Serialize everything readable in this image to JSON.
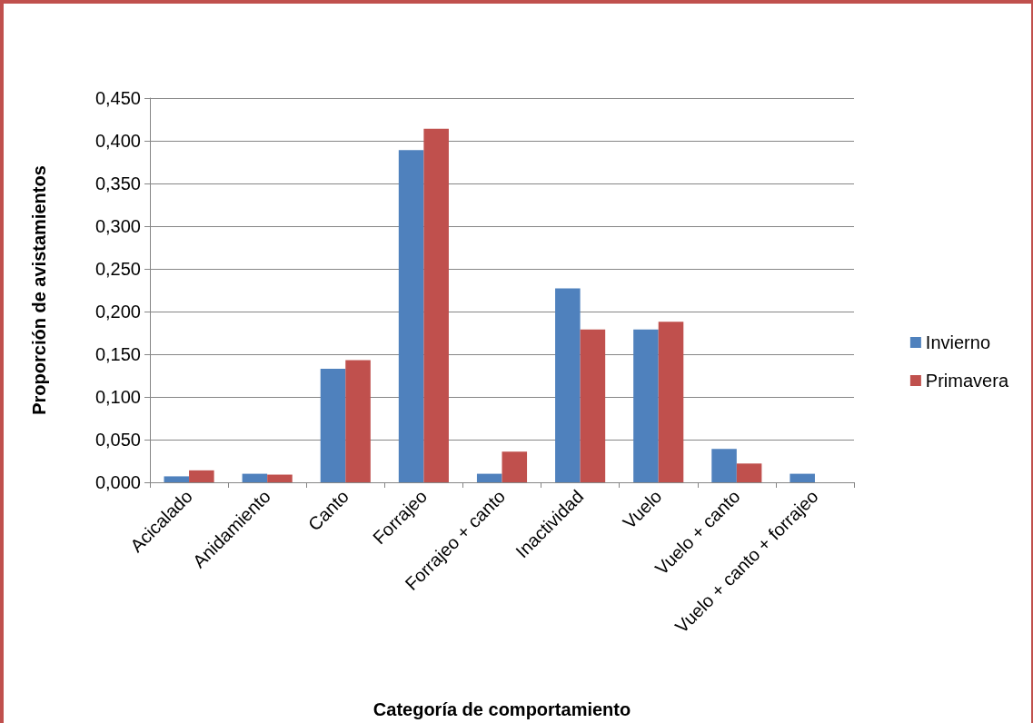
{
  "chart_data": {
    "type": "bar",
    "xlabel": "Categoría de comportamiento",
    "ylabel": "Proporción de avistamientos",
    "categories": [
      "Acicalado",
      "Anidamiento",
      "Canto",
      "Forrajeo",
      "Forrajeo + canto",
      "Inactividad",
      "Vuelo",
      "Vuelo + canto",
      "Vuelo + canto + forrajeo"
    ],
    "series": [
      {
        "name": "Invierno",
        "color": "#4f81bd",
        "values": [
          0.007,
          0.01,
          0.133,
          0.389,
          0.01,
          0.227,
          0.179,
          0.039,
          0.01
        ]
      },
      {
        "name": "Primavera",
        "color": "#c0504d",
        "values": [
          0.014,
          0.009,
          0.143,
          0.414,
          0.036,
          0.179,
          0.188,
          0.022,
          0
        ]
      }
    ],
    "ylim": [
      0,
      0.45
    ],
    "yticks": [
      {
        "value": 0,
        "label": "0,000"
      },
      {
        "value": 0.05,
        "label": "0,050"
      },
      {
        "value": 0.1,
        "label": "0,100"
      },
      {
        "value": 0.15,
        "label": "0,150"
      },
      {
        "value": 0.2,
        "label": "0,200"
      },
      {
        "value": 0.25,
        "label": "0,250"
      },
      {
        "value": 0.3,
        "label": "0,300"
      },
      {
        "value": 0.35,
        "label": "0,350"
      },
      {
        "value": 0.4,
        "label": "0,400"
      },
      {
        "value": 0.45,
        "label": "0,450"
      }
    ],
    "grid": "y",
    "legend": "right"
  }
}
